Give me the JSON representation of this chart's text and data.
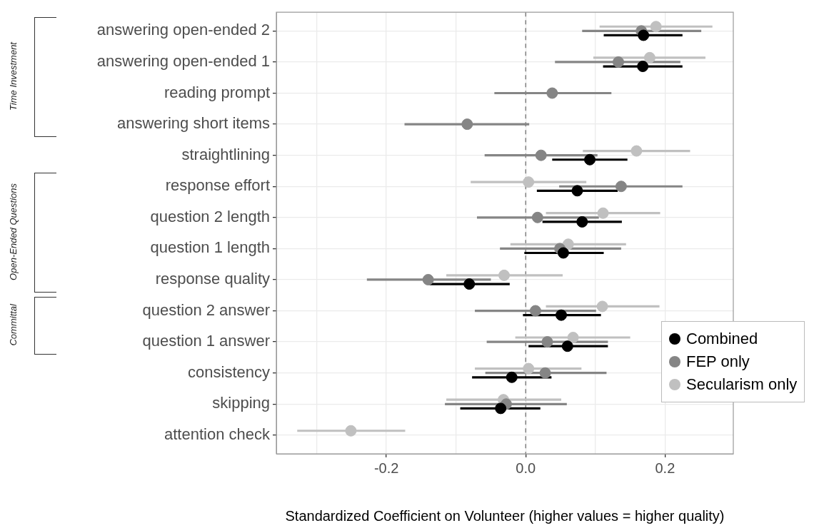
{
  "chart_data": {
    "type": "scatter",
    "orientation": "horizontal",
    "xlabel": "Standardized Coefficient on Volunteer (higher values = higher quality)",
    "categories": [
      "answering open-ended 2",
      "answering open-ended 1",
      "reading prompt",
      "answering short items",
      "straightlining",
      "response effort",
      "question 2 length",
      "question 1 length",
      "response quality",
      "question 2 answer",
      "question 1 answer",
      "consistency",
      "skipping",
      "attention check"
    ],
    "series": [
      {
        "name": "Combined",
        "color": "#000000",
        "values": [
          0.169,
          0.168,
          null,
          null,
          0.092,
          0.074,
          0.081,
          0.054,
          -0.081,
          0.051,
          0.06,
          -0.02,
          -0.036,
          null
        ],
        "errors": [
          [
            0.112,
            0.225
          ],
          [
            0.111,
            0.225
          ],
          null,
          null,
          [
            0.038,
            0.146
          ],
          [
            0.016,
            0.132
          ],
          [
            0.024,
            0.138
          ],
          [
            -0.002,
            0.112
          ],
          [
            -0.138,
            -0.023
          ],
          [
            -0.004,
            0.108
          ],
          [
            0.004,
            0.118
          ],
          [
            -0.077,
            0.037
          ],
          [
            -0.094,
            0.021
          ],
          null
        ]
      },
      {
        "name": "FEP only",
        "color": "#858585",
        "values": [
          0.166,
          0.133,
          0.038,
          -0.084,
          0.022,
          0.137,
          0.017,
          0.049,
          -0.14,
          0.014,
          0.031,
          0.028,
          -0.028,
          null
        ],
        "errors": [
          [
            0.081,
            0.252
          ],
          [
            0.042,
            0.222
          ],
          [
            -0.045,
            0.123
          ],
          [
            -0.174,
            0.005
          ],
          [
            -0.059,
            0.103
          ],
          [
            0.048,
            0.225
          ],
          [
            -0.07,
            0.105
          ],
          [
            -0.037,
            0.137
          ],
          [
            -0.228,
            -0.05
          ],
          [
            -0.073,
            0.101
          ],
          [
            -0.056,
            0.118
          ],
          [
            -0.058,
            0.116
          ],
          [
            -0.116,
            0.059
          ],
          null
        ]
      },
      {
        "name": "Secularism only",
        "color": "#c0c0c0",
        "values": [
          0.187,
          0.178,
          null,
          null,
          0.159,
          0.004,
          0.111,
          0.061,
          -0.031,
          0.11,
          0.068,
          0.004,
          -0.032,
          -0.251
        ],
        "errors": [
          [
            0.106,
            0.268
          ],
          [
            0.097,
            0.258
          ],
          null,
          null,
          [
            0.082,
            0.236
          ],
          [
            -0.079,
            0.087
          ],
          [
            0.029,
            0.193
          ],
          [
            -0.022,
            0.144
          ],
          [
            -0.114,
            0.053
          ],
          [
            0.029,
            0.192
          ],
          [
            -0.015,
            0.15
          ],
          [
            -0.073,
            0.08
          ],
          [
            -0.114,
            0.051
          ],
          [
            -0.328,
            -0.173
          ]
        ]
      }
    ],
    "xlim": [
      -0.358,
      0.298
    ],
    "xticks": [
      {
        "value": -0.3,
        "label": null
      },
      {
        "value": -0.2,
        "label": "-0.2"
      },
      {
        "value": -0.1,
        "label": null
      },
      {
        "value": 0,
        "label": "0.0"
      },
      {
        "value": 0.1,
        "label": null
      },
      {
        "value": 0.2,
        "label": "0.2"
      }
    ],
    "ref_lines": [
      {
        "axis": "x",
        "value": 0,
        "color": "#808080",
        "line_style": "dashed"
      }
    ],
    "annotations": [
      "Time Investment",
      "Open-Ended Questions",
      "Committal"
    ],
    "grid": true,
    "legend": "right",
    "marker": "circle"
  }
}
